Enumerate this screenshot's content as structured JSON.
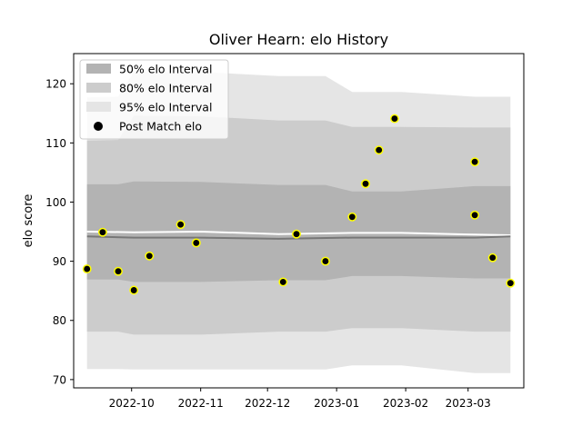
{
  "chart_data": {
    "type": "scatter",
    "title": "Oliver Hearn: elo History",
    "xlabel": "",
    "ylabel": "elo score",
    "xlim": [
      "2022-09-05",
      "2023-03-26"
    ],
    "ylim": [
      68.6,
      125.1
    ],
    "x_ticks": [
      "2022-10",
      "2022-11",
      "2022-12",
      "2023-01",
      "2023-02",
      "2023-03"
    ],
    "x_tick_dates": [
      "2022-10-01",
      "2022-11-01",
      "2022-12-01",
      "2023-01-01",
      "2023-02-01",
      "2023-03-01"
    ],
    "y_ticks": [
      70,
      80,
      90,
      100,
      110,
      120
    ],
    "grid": false,
    "legend_position": "top-left",
    "legend": [
      {
        "label": "50% elo Interval",
        "color": "#b3b3b3",
        "kind": "patch"
      },
      {
        "label": "80% elo Interval",
        "color": "#cccccc",
        "kind": "patch"
      },
      {
        "label": "95% elo Interval",
        "color": "#e5e5e5",
        "kind": "patch"
      },
      {
        "label": "Post Match elo",
        "color": "#000000",
        "kind": "marker"
      }
    ],
    "bands": [
      {
        "name": "95% elo Interval",
        "color": "#e5e5e5",
        "x": [
          "2022-09-11",
          "2022-09-25",
          "2022-10-02",
          "2022-11-01",
          "2022-12-06",
          "2022-12-27",
          "2023-01-08",
          "2023-01-30",
          "2023-03-04",
          "2023-03-20"
        ],
        "lower": [
          71.8,
          71.8,
          71.7,
          71.7,
          71.7,
          71.7,
          72.4,
          72.4,
          71.1,
          71.1
        ],
        "upper": [
          117.7,
          117.8,
          122.0,
          122.0,
          121.3,
          121.3,
          118.6,
          118.6,
          117.8,
          117.8
        ]
      },
      {
        "name": "80% elo Interval",
        "color": "#cccccc",
        "x": [
          "2022-09-11",
          "2022-09-25",
          "2022-10-02",
          "2022-11-01",
          "2022-12-06",
          "2022-12-27",
          "2023-01-08",
          "2023-01-30",
          "2023-03-04",
          "2023-03-20"
        ],
        "lower": [
          78.1,
          78.1,
          77.6,
          77.6,
          78.1,
          78.1,
          78.7,
          78.7,
          78.1,
          78.1
        ],
        "upper": [
          110.4,
          110.5,
          114.6,
          114.5,
          113.8,
          113.8,
          112.7,
          112.7,
          112.6,
          112.6
        ]
      },
      {
        "name": "50% elo Interval",
        "color": "#b3b3b3",
        "x": [
          "2022-09-11",
          "2022-09-25",
          "2022-10-02",
          "2022-11-01",
          "2022-12-06",
          "2022-12-27",
          "2023-01-08",
          "2023-01-30",
          "2023-03-04",
          "2023-03-20"
        ],
        "lower": [
          86.9,
          86.9,
          86.5,
          86.5,
          86.8,
          86.8,
          87.5,
          87.5,
          87.1,
          87.1
        ],
        "upper": [
          103.0,
          103.0,
          103.5,
          103.4,
          102.9,
          102.9,
          101.8,
          101.8,
          102.7,
          102.7
        ]
      }
    ],
    "lines": [
      {
        "color": "#ffffff",
        "x": [
          "2022-09-11",
          "2022-10-02",
          "2022-11-01",
          "2022-12-06",
          "2023-01-08",
          "2023-01-30",
          "2023-03-04",
          "2023-03-20"
        ],
        "y": [
          95.0,
          94.9,
          95.0,
          94.6,
          94.8,
          94.8,
          94.5,
          94.4
        ]
      },
      {
        "color": "#777777",
        "x": [
          "2022-09-11",
          "2022-10-02",
          "2022-11-01",
          "2022-12-06",
          "2023-01-08",
          "2023-01-30",
          "2023-03-04",
          "2023-03-20"
        ],
        "y": [
          94.2,
          94.0,
          94.0,
          93.8,
          94.0,
          94.0,
          94.0,
          94.2
        ]
      }
    ],
    "points": {
      "name": "Post Match elo",
      "fill": "#000000",
      "edge": "#ffff00",
      "x": [
        "2022-09-11",
        "2022-09-18",
        "2022-09-25",
        "2022-10-02",
        "2022-10-09",
        "2022-10-23",
        "2022-10-30",
        "2022-12-08",
        "2022-12-14",
        "2022-12-27",
        "2023-01-08",
        "2023-01-14",
        "2023-01-20",
        "2023-01-27",
        "2023-03-04",
        "2023-03-04",
        "2023-03-12",
        "2023-03-20"
      ],
      "y": [
        88.7,
        94.9,
        88.3,
        85.1,
        90.9,
        96.2,
        93.1,
        86.5,
        94.6,
        90.0,
        97.5,
        103.1,
        108.8,
        114.1,
        106.8,
        97.8,
        90.6,
        86.3
      ]
    }
  }
}
